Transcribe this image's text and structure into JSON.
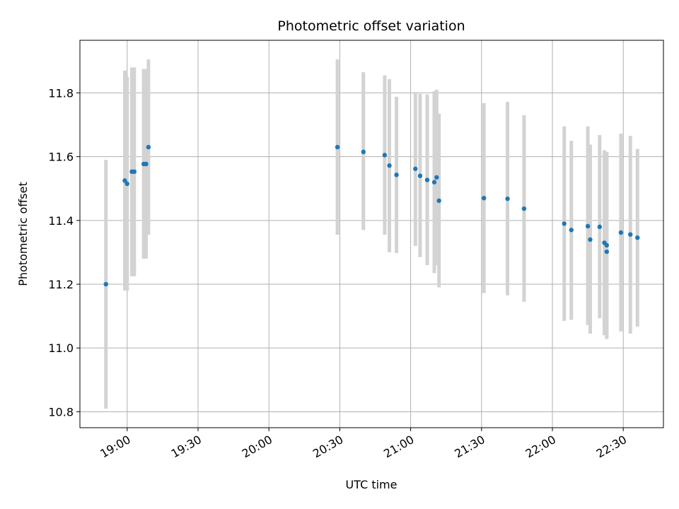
{
  "chart_data": {
    "type": "scatter",
    "title": "Photometric offset variation",
    "xlabel": "UTC time",
    "ylabel": "Photometric offset",
    "xlim": [
      "18:40",
      "22:47"
    ],
    "ylim": [
      10.75,
      11.965
    ],
    "xticks": [
      "19:00",
      "19:30",
      "20:00",
      "20:30",
      "21:00",
      "21:30",
      "22:00",
      "22:30"
    ],
    "yticks": [
      10.8,
      11.0,
      11.2,
      11.4,
      11.6,
      11.8
    ],
    "grid": true,
    "colors": {
      "points": "#1f77b4",
      "errorbars": "#d3d3d3",
      "grid": "#b0b0b0"
    },
    "points": [
      {
        "x": "18:51",
        "y": 11.2,
        "low": 10.81,
        "high": 11.59
      },
      {
        "x": "18:59",
        "y": 11.525,
        "low": 11.18,
        "high": 11.87
      },
      {
        "x": "19:00",
        "y": 11.515,
        "low": 11.18,
        "high": 11.85
      },
      {
        "x": "19:02",
        "y": 11.553,
        "low": 11.225,
        "high": 11.88
      },
      {
        "x": "19:03",
        "y": 11.553,
        "low": 11.225,
        "high": 11.88
      },
      {
        "x": "19:07",
        "y": 11.577,
        "low": 11.28,
        "high": 11.875
      },
      {
        "x": "19:08",
        "y": 11.577,
        "low": 11.28,
        "high": 11.875
      },
      {
        "x": "19:09",
        "y": 11.63,
        "low": 11.355,
        "high": 11.905
      },
      {
        "x": "20:29",
        "y": 11.63,
        "low": 11.355,
        "high": 11.905
      },
      {
        "x": "20:40",
        "y": 11.615,
        "low": 11.37,
        "high": 11.865
      },
      {
        "x": "20:49",
        "y": 11.605,
        "low": 11.355,
        "high": 11.855
      },
      {
        "x": "20:51",
        "y": 11.572,
        "low": 11.3,
        "high": 11.843
      },
      {
        "x": "20:54",
        "y": 11.543,
        "low": 11.298,
        "high": 11.788
      },
      {
        "x": "21:02",
        "y": 11.562,
        "low": 11.32,
        "high": 11.803
      },
      {
        "x": "21:04",
        "y": 11.54,
        "low": 11.285,
        "high": 11.797
      },
      {
        "x": "21:07",
        "y": 11.527,
        "low": 11.26,
        "high": 11.795
      },
      {
        "x": "21:10",
        "y": 11.52,
        "low": 11.235,
        "high": 11.805
      },
      {
        "x": "21:11",
        "y": 11.535,
        "low": 11.26,
        "high": 11.81
      },
      {
        "x": "21:12",
        "y": 11.462,
        "low": 11.19,
        "high": 11.735
      },
      {
        "x": "21:31",
        "y": 11.47,
        "low": 11.172,
        "high": 11.768
      },
      {
        "x": "21:41",
        "y": 11.468,
        "low": 11.165,
        "high": 11.772
      },
      {
        "x": "21:48",
        "y": 11.437,
        "low": 11.145,
        "high": 11.73
      },
      {
        "x": "22:05",
        "y": 11.39,
        "low": 11.085,
        "high": 11.695
      },
      {
        "x": "22:08",
        "y": 11.37,
        "low": 11.088,
        "high": 11.65
      },
      {
        "x": "22:15",
        "y": 11.382,
        "low": 11.072,
        "high": 11.695
      },
      {
        "x": "22:16",
        "y": 11.34,
        "low": 11.045,
        "high": 11.638
      },
      {
        "x": "22:20",
        "y": 11.38,
        "low": 11.093,
        "high": 11.668
      },
      {
        "x": "22:22",
        "y": 11.33,
        "low": 11.04,
        "high": 11.62
      },
      {
        "x": "22:23",
        "y": 11.302,
        "low": 11.028,
        "high": 11.615
      },
      {
        "x": "22:23",
        "y": 11.322,
        "low": 11.03,
        "high": 11.615
      },
      {
        "x": "22:29",
        "y": 11.362,
        "low": 11.052,
        "high": 11.672
      },
      {
        "x": "22:33",
        "y": 11.356,
        "low": 11.045,
        "high": 11.665
      },
      {
        "x": "22:36",
        "y": 11.346,
        "low": 11.067,
        "high": 11.624
      }
    ]
  }
}
